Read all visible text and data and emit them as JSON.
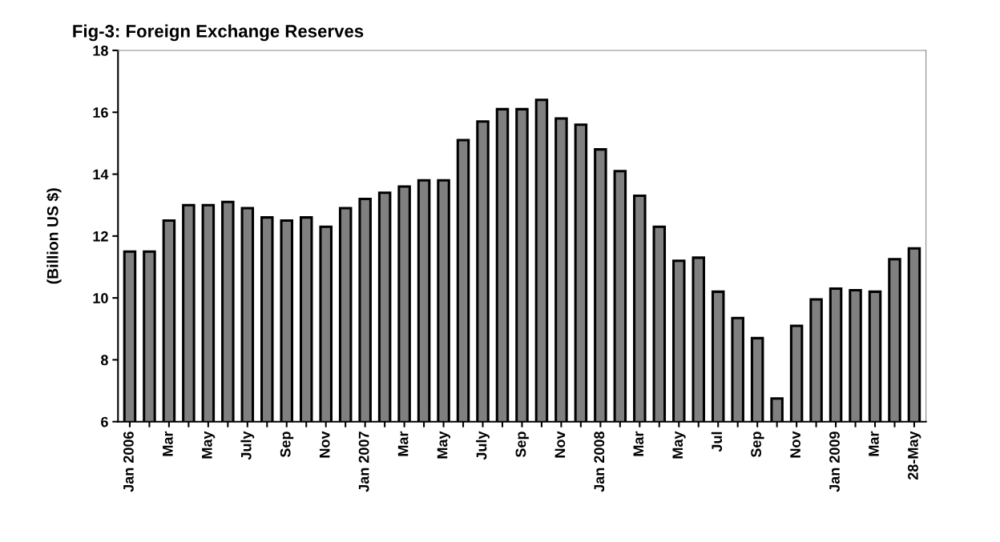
{
  "chart_data": {
    "type": "bar",
    "title": "Fig-3: Foreign Exchange Reserves",
    "ylabel": "(Billion US $)",
    "categories": [
      "Jan 2006",
      null,
      "Mar",
      null,
      "May",
      null,
      "July",
      null,
      "Sep",
      null,
      "Nov",
      null,
      "Jan 2007",
      null,
      "Mar",
      null,
      "May",
      null,
      "July",
      null,
      "Sep",
      null,
      "Nov",
      null,
      "Jan 2008",
      null,
      "Mar",
      null,
      "May",
      null,
      "Jul",
      null,
      "Sep",
      null,
      "Nov",
      null,
      "Jan 2009",
      null,
      "Mar",
      null,
      "28-May"
    ],
    "values": [
      11.5,
      11.5,
      12.5,
      13.0,
      13.0,
      13.1,
      12.9,
      12.6,
      12.5,
      12.6,
      12.3,
      12.9,
      13.2,
      13.4,
      13.6,
      13.8,
      13.8,
      15.1,
      15.7,
      16.1,
      16.1,
      16.4,
      15.8,
      15.6,
      14.8,
      14.1,
      13.3,
      12.3,
      11.2,
      11.3,
      10.2,
      9.35,
      8.7,
      6.75,
      9.1,
      9.95,
      10.3,
      10.25,
      10.2,
      11.25,
      11.6
    ],
    "color": "#808080",
    "ylim": [
      6,
      18
    ],
    "yticks": [
      6,
      8,
      10,
      12,
      14,
      16,
      18
    ],
    "grid": false,
    "legend": false
  }
}
